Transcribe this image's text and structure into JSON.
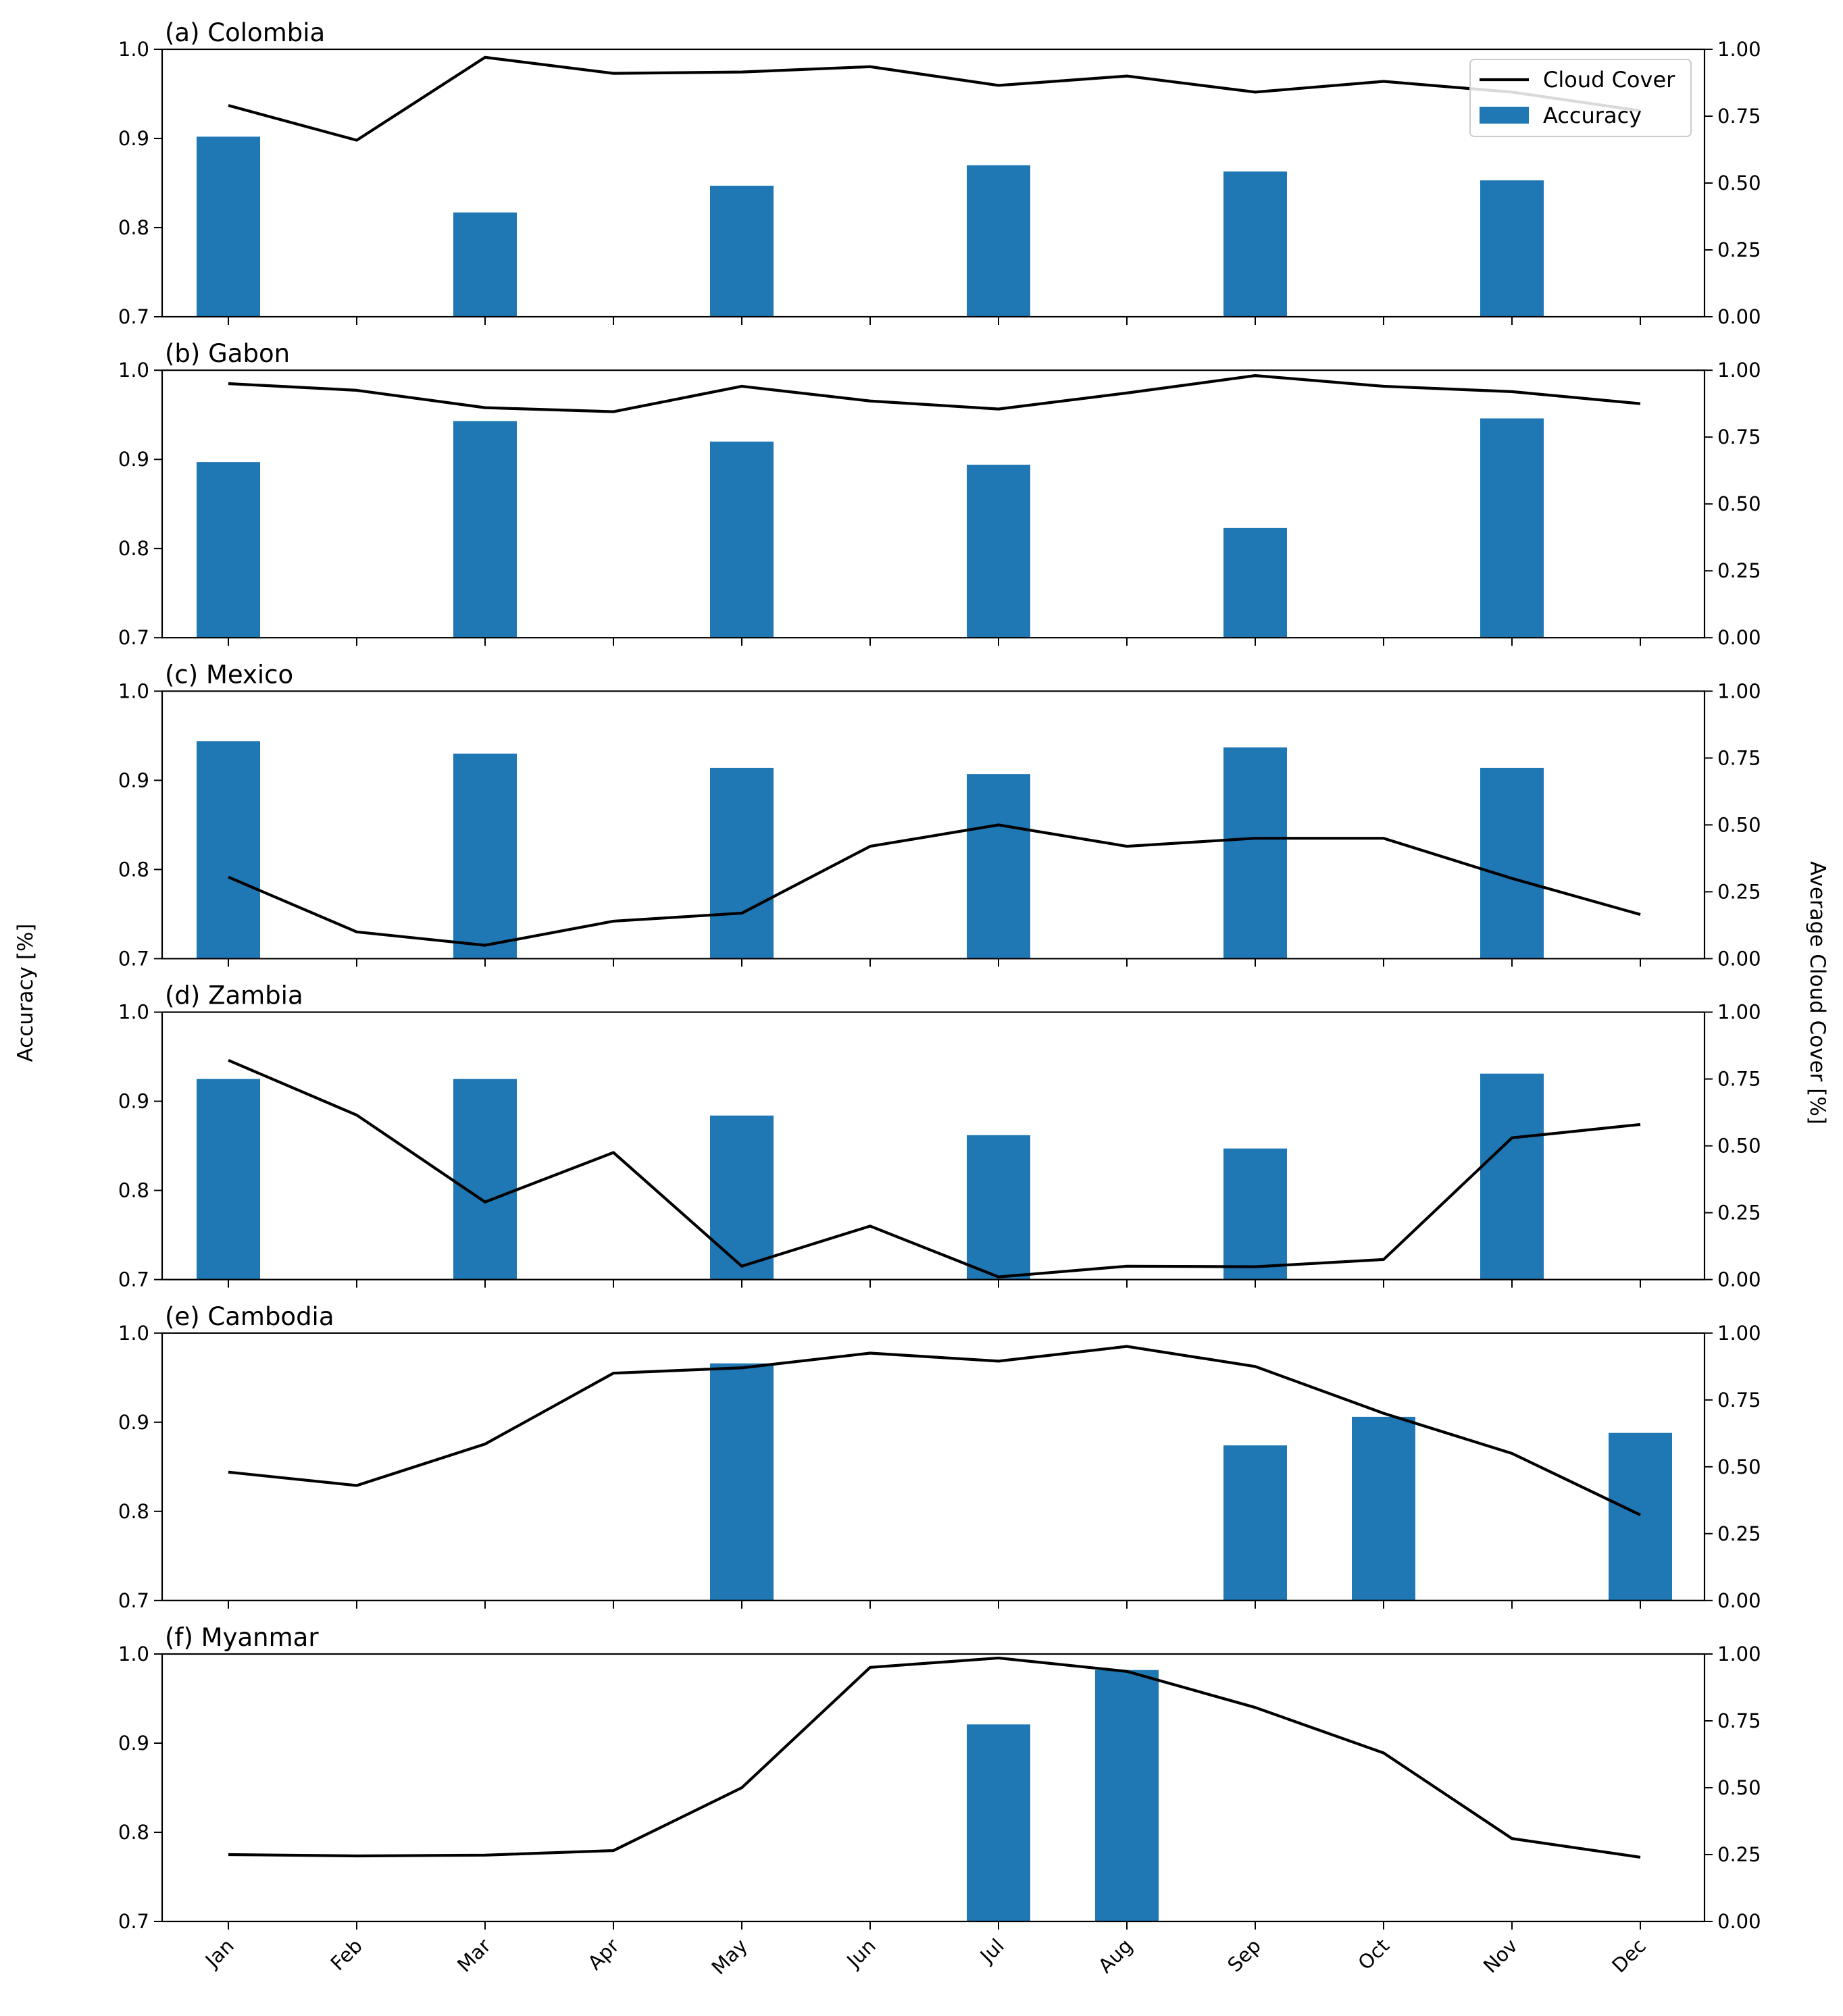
{
  "chart_data": {
    "type": "bar+line",
    "months": [
      "Jan",
      "Feb",
      "Mar",
      "Apr",
      "May",
      "Jun",
      "Jul",
      "Aug",
      "Sep",
      "Oct",
      "Nov",
      "Dec"
    ],
    "ylabel_left": "Accuracy [%]",
    "ylabel_right": "Average Cloud Cover [%]",
    "left_ylim": [
      0.7,
      1.0
    ],
    "left_ticks": [
      "0.7",
      "0.8",
      "0.9",
      "1.0"
    ],
    "right_ylim": [
      0.0,
      1.0
    ],
    "right_ticks": [
      "0.00",
      "0.25",
      "0.50",
      "0.75",
      "1.00"
    ],
    "legend": {
      "line_label": "Cloud Cover",
      "bar_label": "Accuracy",
      "placement": "top-right",
      "panel": 0
    },
    "colors": {
      "bar": "#1f77b4",
      "line": "#000000"
    },
    "panels": [
      {
        "title": "(a) Colombia",
        "accuracy": [
          0.902,
          null,
          0.817,
          null,
          0.847,
          null,
          0.87,
          null,
          0.863,
          null,
          0.853,
          null
        ],
        "cloud_cover": [
          0.79,
          0.66,
          0.97,
          0.91,
          0.915,
          0.935,
          0.865,
          0.9,
          0.84,
          0.88,
          0.84,
          0.77
        ]
      },
      {
        "title": "(b) Gabon",
        "accuracy": [
          0.897,
          null,
          0.943,
          null,
          0.92,
          null,
          0.894,
          null,
          0.823,
          null,
          0.946,
          null
        ],
        "cloud_cover": [
          0.95,
          0.925,
          0.86,
          0.845,
          0.94,
          0.885,
          0.855,
          0.915,
          0.98,
          0.94,
          0.92,
          0.875
        ]
      },
      {
        "title": "(c) Mexico",
        "accuracy": [
          0.944,
          null,
          0.93,
          null,
          0.914,
          null,
          0.907,
          null,
          0.937,
          null,
          0.914,
          null
        ],
        "cloud_cover": [
          0.305,
          0.1,
          0.05,
          0.14,
          0.17,
          0.42,
          0.5,
          0.42,
          0.45,
          0.45,
          0.3,
          0.165
        ]
      },
      {
        "title": "(d) Zambia",
        "accuracy": [
          0.925,
          null,
          0.925,
          null,
          0.884,
          null,
          0.862,
          null,
          0.847,
          null,
          0.931,
          null
        ],
        "cloud_cover": [
          0.82,
          0.615,
          0.29,
          0.475,
          0.05,
          0.2,
          0.01,
          0.05,
          0.048,
          0.075,
          0.53,
          0.58
        ]
      },
      {
        "title": "(e) Cambodia",
        "accuracy": [
          null,
          null,
          null,
          null,
          0.966,
          null,
          null,
          null,
          0.874,
          0.906,
          null,
          0.888
        ],
        "cloud_cover": [
          0.48,
          0.43,
          0.585,
          0.85,
          0.87,
          0.925,
          0.895,
          0.95,
          0.875,
          0.7,
          0.55,
          0.32
        ]
      },
      {
        "title": "(f) Myanmar",
        "accuracy": [
          null,
          null,
          null,
          null,
          null,
          null,
          0.921,
          0.982,
          null,
          null,
          null,
          null
        ],
        "cloud_cover": [
          0.25,
          0.245,
          0.248,
          0.265,
          0.5,
          0.95,
          0.985,
          0.935,
          0.8,
          0.63,
          0.31,
          0.24
        ]
      }
    ]
  }
}
